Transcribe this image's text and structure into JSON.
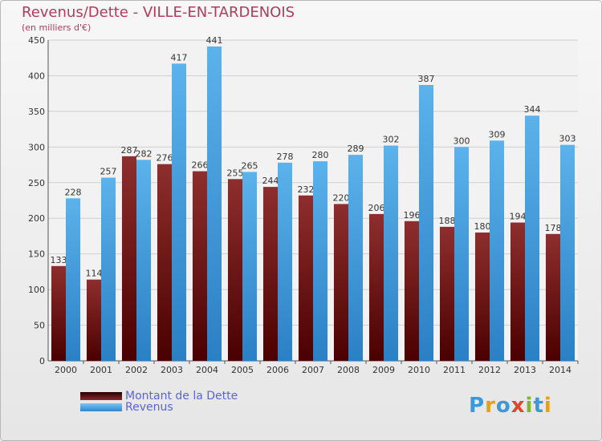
{
  "chart_data": {
    "type": "bar",
    "title": "Revenus/Dette - VILLE-EN-TARDENOIS",
    "subtitle": "(en milliers d'€)",
    "categories": [
      "2000",
      "2001",
      "2002",
      "2003",
      "2004",
      "2005",
      "2006",
      "2007",
      "2008",
      "2009",
      "2010",
      "2011",
      "2012",
      "2013",
      "2014"
    ],
    "series": [
      {
        "name": "Montant de la Dette",
        "color": "#7a1a1a",
        "values": [
          133,
          114,
          287,
          276,
          266,
          255,
          244,
          232,
          220,
          206,
          196,
          188,
          180,
          194,
          178
        ]
      },
      {
        "name": "Revenus",
        "color": "#3d97dc",
        "values": [
          228,
          257,
          282,
          417,
          441,
          265,
          278,
          280,
          289,
          302,
          387,
          300,
          309,
          344,
          303
        ]
      }
    ],
    "ylim": [
      0,
      450
    ],
    "yticks": [
      0,
      50,
      100,
      150,
      200,
      250,
      300,
      350,
      400,
      450
    ],
    "grid": true,
    "legend": "bottom-left"
  },
  "logo_text": "Proxiti"
}
